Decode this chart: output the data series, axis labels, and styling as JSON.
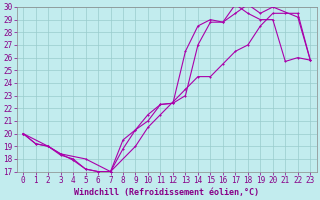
{
  "title": "",
  "xlabel": "Windchill (Refroidissement éolien,°C)",
  "ylabel": "",
  "xlim": [
    -0.5,
    23.5
  ],
  "ylim": [
    17,
    30
  ],
  "xticks": [
    0,
    1,
    2,
    3,
    4,
    5,
    6,
    7,
    8,
    9,
    10,
    11,
    12,
    13,
    14,
    15,
    16,
    17,
    18,
    19,
    20,
    21,
    22,
    23
  ],
  "yticks": [
    17,
    18,
    19,
    20,
    21,
    22,
    23,
    24,
    25,
    26,
    27,
    28,
    29,
    30
  ],
  "bg_color": "#c2ecee",
  "line_color": "#aa00aa",
  "grid_color": "#99cccc",
  "line1_x": [
    0,
    1,
    2,
    3,
    4,
    5,
    6,
    7,
    8,
    9,
    10,
    11,
    12,
    13,
    14,
    15,
    16,
    17,
    18,
    19,
    20,
    21,
    22,
    23
  ],
  "line1_y": [
    20.0,
    19.2,
    19.0,
    18.4,
    17.9,
    17.2,
    17.0,
    17.0,
    18.8,
    20.3,
    21.0,
    22.3,
    22.4,
    26.5,
    28.5,
    29.0,
    28.8,
    30.2,
    29.5,
    29.0,
    29.0,
    25.7,
    26.0,
    25.8
  ],
  "line2_x": [
    0,
    2,
    3,
    4,
    5,
    6,
    7,
    8,
    9,
    10,
    11,
    12,
    13,
    14,
    15,
    16,
    17,
    18,
    19,
    20,
    22,
    23
  ],
  "line2_y": [
    20.0,
    19.0,
    18.3,
    18.0,
    17.2,
    17.0,
    17.0,
    19.5,
    20.3,
    21.5,
    22.3,
    22.4,
    23.0,
    27.0,
    28.8,
    28.8,
    29.5,
    30.2,
    29.5,
    30.0,
    29.2,
    25.8
  ],
  "line3_x": [
    0,
    1,
    2,
    3,
    5,
    7,
    9,
    10,
    11,
    12,
    13,
    14,
    15,
    16,
    17,
    18,
    19,
    20,
    21,
    22,
    23
  ],
  "line3_y": [
    20.0,
    19.2,
    19.0,
    18.4,
    18.0,
    17.0,
    19.0,
    20.5,
    21.5,
    22.5,
    23.5,
    24.5,
    24.5,
    25.5,
    26.5,
    27.0,
    28.5,
    29.5,
    29.5,
    29.5,
    25.8
  ],
  "tick_fontsize": 5.5,
  "xlabel_fontsize": 6.0
}
